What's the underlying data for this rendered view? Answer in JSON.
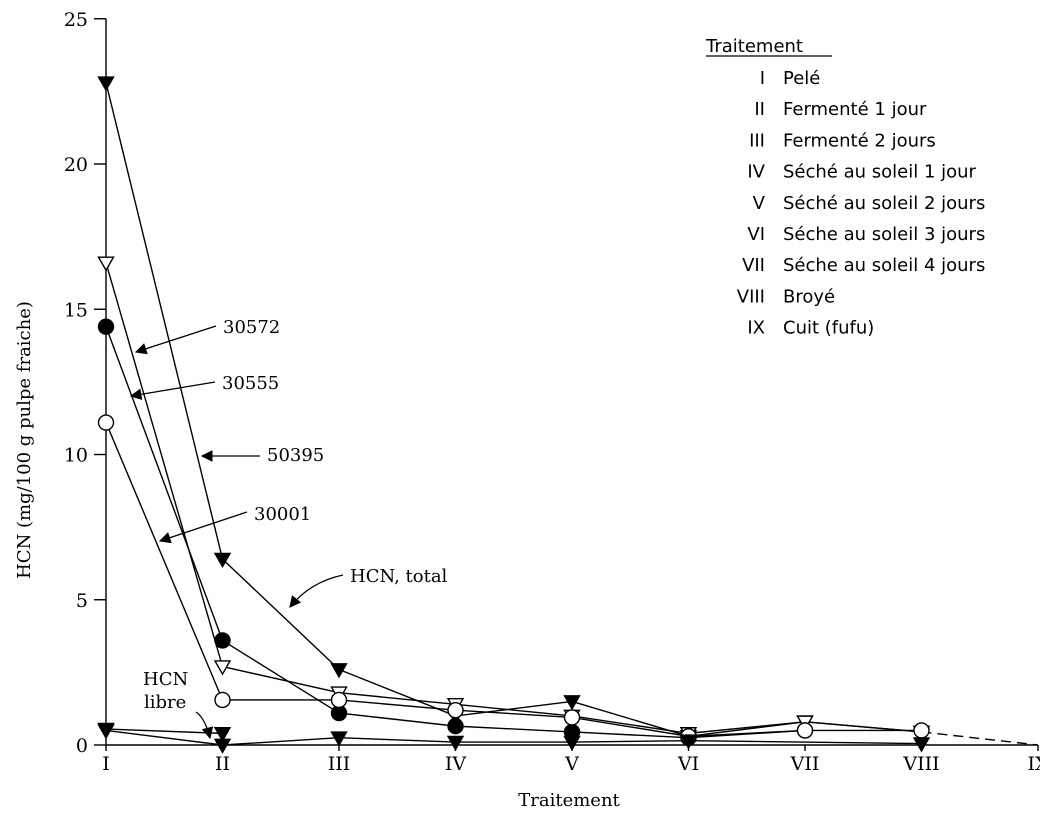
{
  "chart_data": {
    "type": "line",
    "xlabel": "Traitement",
    "ylabel": "HCN (mg/100 g pulpe fraiche)",
    "ylim": [
      0,
      25
    ],
    "yticks": [
      "0",
      "5",
      "10",
      "15",
      "20",
      "25"
    ],
    "categories": [
      "I",
      "II",
      "III",
      "IV",
      "V",
      "VI",
      "VII",
      "VIII",
      "IX"
    ],
    "series": [
      {
        "name": "30572",
        "marker": "triangle-down-filled",
        "values": [
          22.8,
          6.4,
          2.6,
          1.0,
          1.5,
          0.3,
          0.8,
          0.45,
          0.0
        ],
        "dashed_from_index": 7
      },
      {
        "name": "30555",
        "marker": "triangle-down-open",
        "values": [
          16.6,
          2.7,
          1.8,
          1.4,
          1.0,
          0.4,
          0.8,
          0.45,
          null
        ]
      },
      {
        "name": "30001",
        "marker": "circle-filled",
        "values": [
          14.4,
          3.6,
          1.1,
          0.65,
          0.45,
          0.25,
          0.5,
          null,
          null
        ]
      },
      {
        "name": "50395",
        "marker": "circle-open",
        "values": [
          11.1,
          1.55,
          1.55,
          1.2,
          0.95,
          0.3,
          0.5,
          0.5,
          null
        ]
      },
      {
        "name": "HCN libre",
        "marker": "triangle-down-filled",
        "values": [
          0.5,
          0.0,
          0.25,
          0.1,
          0.1,
          0.15,
          null,
          0.05,
          null
        ]
      },
      {
        "name": "HCN libre",
        "marker": "triangle-down-filled",
        "values": [
          0.55,
          0.4,
          null,
          null,
          null,
          null,
          null,
          null,
          null
        ]
      }
    ],
    "annotations": {
      "a30572": "30572",
      "a30555": "30555",
      "a50395": "50395",
      "a30001": "30001",
      "hcn_total": "HCN, total",
      "hcn_libre_1": "HCN",
      "hcn_libre_2": "libre"
    },
    "legend": {
      "title": "Traitement",
      "placement": "top-right",
      "items": [
        {
          "code": "I",
          "label": "Pelé"
        },
        {
          "code": "II",
          "label": "Fermenté 1 jour"
        },
        {
          "code": "III",
          "label": "Fermenté 2 jours"
        },
        {
          "code": "IV",
          "label": "Séché au soleil 1 jour"
        },
        {
          "code": "V",
          "label": "Séché au soleil 2 jours"
        },
        {
          "code": "VI",
          "label": "Séche au soleil 3 jours"
        },
        {
          "code": "VII",
          "label": "Séche au soleil 4 jours"
        },
        {
          "code": "VIII",
          "label": "Broyé"
        },
        {
          "code": "IX",
          "label": "Cuit (fufu)"
        }
      ]
    }
  }
}
